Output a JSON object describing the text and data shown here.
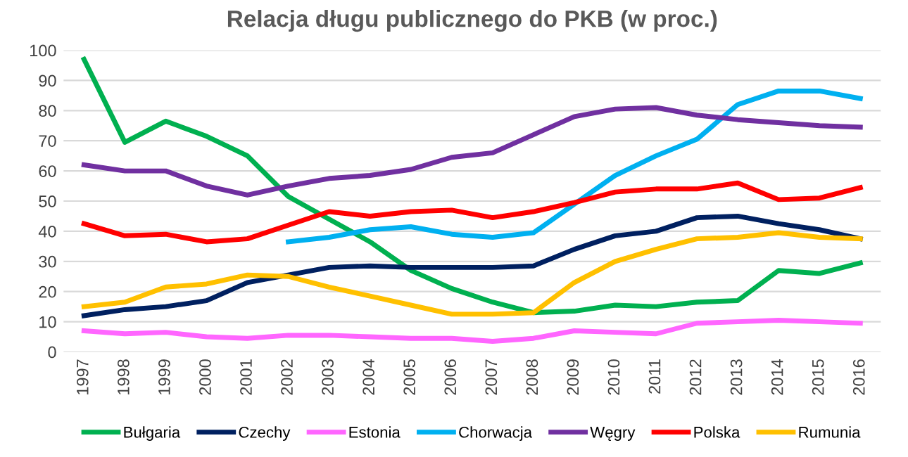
{
  "chart_data": {
    "type": "line",
    "title": "Relacja długu publicznego do PKB (w proc.)",
    "categories": [
      "1997",
      "1998",
      "1999",
      "2000",
      "2001",
      "2002",
      "2003",
      "2004",
      "2005",
      "2006",
      "2007",
      "2008",
      "2009",
      "2010",
      "2011",
      "2012",
      "2013",
      "2014",
      "2015",
      "2016"
    ],
    "ylim": [
      0,
      100
    ],
    "yticks": [
      0,
      10,
      20,
      30,
      40,
      50,
      60,
      70,
      80,
      90,
      100
    ],
    "grid": "y",
    "legend": "bottom",
    "marker": "none",
    "line_style": "solid",
    "series": [
      {
        "name": "Bułgaria",
        "color": "#00b050",
        "values": [
          97,
          69.5,
          76.5,
          71.5,
          65,
          51.5,
          44,
          36.5,
          27,
          21,
          16.5,
          13,
          13.5,
          15.5,
          15,
          16.5,
          17,
          27,
          26,
          29.5
        ]
      },
      {
        "name": "Czechy",
        "color": "#002060",
        "values": [
          12,
          14,
          15,
          17,
          23,
          25.5,
          28,
          28.5,
          28,
          28,
          28,
          28.5,
          34,
          38.5,
          40,
          44.5,
          45,
          42.5,
          40.5,
          37.5
        ]
      },
      {
        "name": "Estonia",
        "color": "#ff66ff",
        "values": [
          7,
          6,
          6.5,
          5,
          4.5,
          5.5,
          5.5,
          5,
          4.5,
          4.5,
          3.5,
          4.5,
          7,
          6.5,
          6,
          9.5,
          10,
          10.5,
          10,
          9.5
        ]
      },
      {
        "name": "Chorwacja",
        "color": "#00b0f0",
        "values": [
          null,
          null,
          null,
          null,
          null,
          36.5,
          38,
          40.5,
          41.5,
          39,
          38,
          39.5,
          49,
          58.5,
          65,
          70.5,
          82,
          86.5,
          86.5,
          84
        ]
      },
      {
        "name": "Węgry",
        "color": "#7030a0",
        "values": [
          62,
          60,
          60,
          55,
          52,
          55,
          57.5,
          58.5,
          60.5,
          64.5,
          66,
          72,
          78,
          80.5,
          81,
          78.5,
          77,
          76,
          75,
          74.5
        ]
      },
      {
        "name": "Polska",
        "color": "#ff0000",
        "values": [
          42.5,
          38.5,
          39,
          36.5,
          37.5,
          42,
          46.5,
          45,
          46.5,
          47,
          44.5,
          46.5,
          49.5,
          53,
          54,
          54,
          56,
          50.5,
          51,
          54.5
        ]
      },
      {
        "name": "Rumunia",
        "color": "#ffc000",
        "values": [
          15,
          16.5,
          21.5,
          22.5,
          25.5,
          25,
          21.5,
          18.5,
          15.5,
          12.5,
          12.5,
          13,
          23,
          30,
          34,
          37.5,
          38,
          39.5,
          38,
          37.5
        ]
      }
    ]
  }
}
